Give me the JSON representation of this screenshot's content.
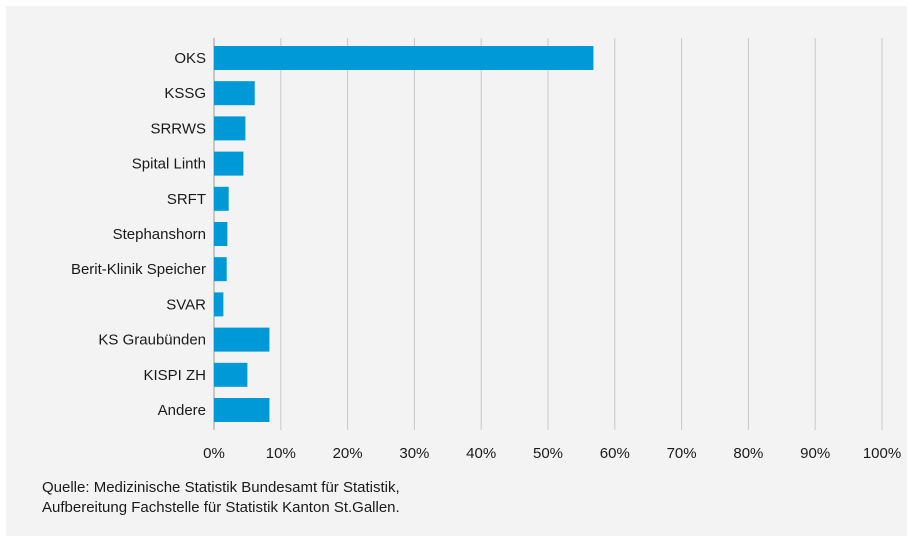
{
  "chart_data": {
    "type": "bar",
    "orientation": "horizontal",
    "categories": [
      "OKS",
      "KSSG",
      "SRRWS",
      "Spital Linth",
      "SRFT",
      "Stephanshorn",
      "Berit-Klinik Speicher",
      "SVAR",
      "KS Graubünden",
      "KISPI ZH",
      "Andere"
    ],
    "values": [
      56.8,
      6.1,
      4.7,
      4.4,
      2.2,
      2.0,
      1.9,
      1.4,
      8.3,
      5.0,
      8.3
    ],
    "xlim": [
      0,
      100
    ],
    "x_ticks": [
      "0%",
      "10%",
      "20%",
      "30%",
      "40%",
      "50%",
      "60%",
      "70%",
      "80%",
      "90%",
      "100%"
    ],
    "grid": "vertical",
    "bar_color": "#0099d8",
    "background_color": "#f3f3f3"
  },
  "source": {
    "line1": "Quelle: Medizinische Statistik Bundesamt für Statistik,",
    "line2": "Aufbereitung Fachstelle für Statistik Kanton St.Gallen."
  }
}
